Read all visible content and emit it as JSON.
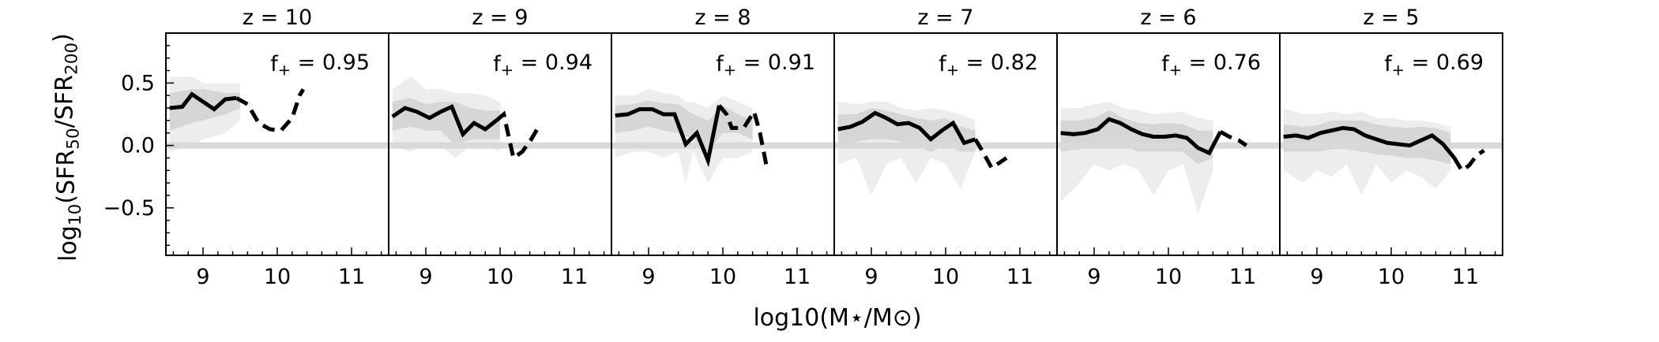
{
  "figure": {
    "xlabel": "log10(M⋆/M⊙)",
    "ylabel": "log10(SFR50/SFR200)"
  },
  "chart_data": [
    {
      "type": "line",
      "title": "z = 10",
      "annotation": "f+ = 0.95",
      "xlim": [
        8.5,
        11.5
      ],
      "ylim": [
        -0.88,
        0.9
      ],
      "xticks": [
        9,
        10,
        11
      ],
      "yticks": [
        -0.5,
        0.0,
        0.5
      ],
      "solid": [
        [
          8.55,
          0.3
        ],
        [
          8.72,
          0.31
        ],
        [
          8.85,
          0.41
        ],
        [
          9.0,
          0.35
        ],
        [
          9.15,
          0.29
        ],
        [
          9.3,
          0.37
        ],
        [
          9.45,
          0.38
        ]
      ],
      "dashed": [
        [
          9.45,
          0.38
        ],
        [
          9.6,
          0.33
        ],
        [
          9.75,
          0.18
        ],
        [
          9.9,
          0.13
        ],
        [
          10.05,
          0.12
        ],
        [
          10.2,
          0.22
        ],
        [
          10.3,
          0.4
        ],
        [
          10.35,
          0.45
        ]
      ],
      "band_outer": {
        "x": [
          8.55,
          8.85,
          9.0,
          9.3,
          9.5
        ],
        "lo": [
          -0.05,
          0.0,
          0.05,
          0.1,
          0.2
        ],
        "hi": [
          0.55,
          0.55,
          0.5,
          0.5,
          0.5
        ]
      },
      "band_inner": {
        "x": [
          8.55,
          8.85,
          9.0,
          9.3,
          9.5
        ],
        "lo": [
          0.12,
          0.18,
          0.2,
          0.25,
          0.3
        ],
        "hi": [
          0.42,
          0.45,
          0.45,
          0.42,
          0.42
        ]
      }
    },
    {
      "type": "line",
      "title": "z = 9",
      "annotation": "f+ = 0.94",
      "xlim": [
        8.5,
        11.5
      ],
      "ylim": [
        -0.88,
        0.9
      ],
      "xticks": [
        9,
        10,
        11
      ],
      "yticks": [
        -0.5,
        0.0,
        0.5
      ],
      "solid": [
        [
          8.55,
          0.23
        ],
        [
          8.72,
          0.3
        ],
        [
          8.88,
          0.27
        ],
        [
          9.05,
          0.22
        ],
        [
          9.2,
          0.27
        ],
        [
          9.35,
          0.31
        ],
        [
          9.5,
          0.09
        ],
        [
          9.65,
          0.18
        ],
        [
          9.8,
          0.13
        ],
        [
          9.95,
          0.2
        ]
      ],
      "dashed": [
        [
          9.95,
          0.2
        ],
        [
          10.05,
          0.25
        ],
        [
          10.18,
          -0.1
        ],
        [
          10.3,
          -0.05
        ],
        [
          10.42,
          0.05
        ],
        [
          10.5,
          0.13
        ]
      ],
      "band_outer": {
        "x": [
          8.55,
          8.8,
          9.0,
          9.2,
          9.4,
          9.6,
          9.8,
          10.0
        ],
        "lo": [
          0.0,
          -0.05,
          0.0,
          0.0,
          -0.1,
          0.0,
          0.0,
          -0.05
        ],
        "hi": [
          0.45,
          0.55,
          0.45,
          0.45,
          0.42,
          0.42,
          0.4,
          0.35
        ]
      },
      "band_inner": {
        "x": [
          8.55,
          8.8,
          9.0,
          9.2,
          9.4,
          9.6,
          9.8,
          10.0
        ],
        "lo": [
          0.12,
          0.15,
          0.12,
          0.12,
          0.0,
          0.05,
          0.05,
          0.05
        ],
        "hi": [
          0.35,
          0.38,
          0.33,
          0.35,
          0.35,
          0.3,
          0.28,
          0.28
        ]
      }
    },
    {
      "type": "line",
      "title": "z = 8",
      "annotation": "f+ = 0.91",
      "xlim": [
        8.5,
        11.5
      ],
      "ylim": [
        -0.88,
        0.9
      ],
      "xticks": [
        9,
        10,
        11
      ],
      "yticks": [
        -0.5,
        0.0,
        0.5
      ],
      "solid": [
        [
          8.55,
          0.24
        ],
        [
          8.72,
          0.25
        ],
        [
          8.88,
          0.29
        ],
        [
          9.05,
          0.29
        ],
        [
          9.2,
          0.25
        ],
        [
          9.35,
          0.25
        ],
        [
          9.5,
          0.01
        ],
        [
          9.65,
          0.1
        ],
        [
          9.8,
          -0.12
        ],
        [
          9.95,
          0.32
        ]
      ],
      "dashed": [
        [
          9.95,
          0.32
        ],
        [
          10.05,
          0.25
        ],
        [
          10.12,
          0.14
        ],
        [
          10.28,
          0.14
        ],
        [
          10.42,
          0.27
        ],
        [
          10.5,
          0.1
        ],
        [
          10.6,
          -0.2
        ]
      ],
      "band_outer": {
        "x": [
          8.55,
          8.8,
          9.0,
          9.2,
          9.4,
          9.5,
          9.6,
          9.8,
          10.0,
          10.2,
          10.4
        ],
        "lo": [
          -0.1,
          -0.05,
          -0.05,
          -0.1,
          -0.05,
          -0.3,
          -0.05,
          -0.3,
          -0.1,
          -0.1,
          -0.05
        ],
        "hi": [
          0.4,
          0.4,
          0.45,
          0.42,
          0.4,
          0.35,
          0.35,
          0.3,
          0.4,
          0.35,
          0.3
        ]
      },
      "band_inner": {
        "x": [
          8.55,
          8.8,
          9.0,
          9.2,
          9.4,
          9.6,
          9.8,
          10.0,
          10.2,
          10.4
        ],
        "lo": [
          0.1,
          0.12,
          0.15,
          0.12,
          0.1,
          0.05,
          -0.05,
          0.1,
          0.1,
          0.05
        ],
        "hi": [
          0.32,
          0.33,
          0.36,
          0.34,
          0.33,
          0.25,
          0.2,
          0.32,
          0.25,
          0.2
        ]
      }
    },
    {
      "type": "line",
      "title": "z = 7",
      "annotation": "f+ = 0.82",
      "xlim": [
        8.5,
        11.5
      ],
      "ylim": [
        -0.88,
        0.9
      ],
      "xticks": [
        9,
        10,
        11
      ],
      "yticks": [
        -0.5,
        0.0,
        0.5
      ],
      "solid": [
        [
          8.55,
          0.13
        ],
        [
          8.72,
          0.15
        ],
        [
          8.88,
          0.19
        ],
        [
          9.05,
          0.26
        ],
        [
          9.2,
          0.22
        ],
        [
          9.35,
          0.17
        ],
        [
          9.5,
          0.18
        ],
        [
          9.65,
          0.14
        ],
        [
          9.8,
          0.05
        ],
        [
          9.95,
          0.12
        ],
        [
          10.1,
          0.18
        ],
        [
          10.25,
          0.02
        ],
        [
          10.4,
          0.05
        ]
      ],
      "dashed": [
        [
          10.4,
          0.05
        ],
        [
          10.5,
          -0.05
        ],
        [
          10.62,
          -0.18
        ],
        [
          10.72,
          -0.14
        ],
        [
          10.82,
          -0.1
        ]
      ],
      "band_outer": {
        "x": [
          8.55,
          8.8,
          9.0,
          9.2,
          9.4,
          9.6,
          9.8,
          10.0,
          10.2,
          10.4
        ],
        "lo": [
          -0.15,
          -0.1,
          -0.4,
          -0.15,
          -0.1,
          -0.3,
          -0.1,
          -0.15,
          -0.35,
          -0.05
        ],
        "hi": [
          0.35,
          0.33,
          0.35,
          0.35,
          0.3,
          0.28,
          0.3,
          0.28,
          0.25,
          0.2
        ]
      },
      "band_inner": {
        "x": [
          8.55,
          8.8,
          9.0,
          9.2,
          9.4,
          9.6,
          9.8,
          10.0,
          10.2,
          10.4
        ],
        "lo": [
          0.0,
          0.03,
          0.05,
          0.05,
          0.03,
          0.0,
          -0.05,
          0.0,
          -0.05,
          -0.05
        ],
        "hi": [
          0.25,
          0.25,
          0.3,
          0.28,
          0.25,
          0.22,
          0.2,
          0.22,
          0.15,
          0.12
        ]
      }
    },
    {
      "type": "line",
      "title": "z = 6",
      "annotation": "f+ = 0.76",
      "xlim": [
        8.5,
        11.5
      ],
      "ylim": [
        -0.88,
        0.9
      ],
      "xticks": [
        9,
        10,
        11
      ],
      "yticks": [
        -0.5,
        0.0,
        0.5
      ],
      "solid": [
        [
          8.55,
          0.1
        ],
        [
          8.72,
          0.09
        ],
        [
          8.88,
          0.1
        ],
        [
          9.05,
          0.13
        ],
        [
          9.2,
          0.21
        ],
        [
          9.35,
          0.18
        ],
        [
          9.5,
          0.13
        ],
        [
          9.65,
          0.09
        ],
        [
          9.8,
          0.07
        ],
        [
          9.95,
          0.07
        ],
        [
          10.1,
          0.08
        ],
        [
          10.25,
          0.06
        ],
        [
          10.4,
          -0.02
        ],
        [
          10.55,
          -0.06
        ],
        [
          10.7,
          0.11
        ]
      ],
      "dashed": [
        [
          10.7,
          0.11
        ],
        [
          10.82,
          0.07
        ],
        [
          10.95,
          0.04
        ],
        [
          11.05,
          0.0
        ]
      ],
      "band_outer": {
        "x": [
          8.55,
          8.8,
          9.0,
          9.2,
          9.4,
          9.6,
          9.8,
          10.0,
          10.2,
          10.4,
          10.6
        ],
        "lo": [
          -0.45,
          -0.3,
          -0.15,
          -0.2,
          -0.15,
          -0.2,
          -0.4,
          -0.2,
          -0.15,
          -0.55,
          -0.2
        ],
        "hi": [
          0.3,
          0.3,
          0.33,
          0.35,
          0.3,
          0.28,
          0.25,
          0.26,
          0.27,
          0.22,
          0.2
        ]
      },
      "band_inner": {
        "x": [
          8.55,
          8.8,
          9.0,
          9.2,
          9.4,
          9.6,
          9.8,
          10.0,
          10.2,
          10.4,
          10.6
        ],
        "lo": [
          -0.05,
          -0.03,
          0.0,
          0.0,
          0.0,
          -0.05,
          -0.05,
          -0.05,
          -0.05,
          -0.15,
          -0.1
        ],
        "hi": [
          0.2,
          0.2,
          0.22,
          0.28,
          0.22,
          0.18,
          0.17,
          0.18,
          0.17,
          0.12,
          0.12
        ]
      }
    },
    {
      "type": "line",
      "title": "z = 5",
      "annotation": "f+ = 0.69",
      "xlim": [
        8.5,
        11.5
      ],
      "ylim": [
        -0.88,
        0.9
      ],
      "xticks": [
        9,
        10,
        11
      ],
      "yticks": [
        -0.5,
        0.0,
        0.5
      ],
      "solid": [
        [
          8.55,
          0.07
        ],
        [
          8.72,
          0.08
        ],
        [
          8.88,
          0.06
        ],
        [
          9.05,
          0.1
        ],
        [
          9.2,
          0.12
        ],
        [
          9.35,
          0.14
        ],
        [
          9.5,
          0.13
        ],
        [
          9.65,
          0.08
        ],
        [
          9.8,
          0.05
        ],
        [
          9.95,
          0.02
        ],
        [
          10.1,
          0.01
        ],
        [
          10.25,
          0.0
        ],
        [
          10.4,
          0.04
        ],
        [
          10.55,
          0.08
        ],
        [
          10.7,
          0.01
        ],
        [
          10.85,
          -0.1
        ]
      ],
      "dashed": [
        [
          10.85,
          -0.1
        ],
        [
          10.95,
          -0.2
        ],
        [
          11.05,
          -0.16
        ],
        [
          11.15,
          -0.08
        ],
        [
          11.25,
          -0.04
        ]
      ],
      "band_outer": {
        "x": [
          8.55,
          8.8,
          9.0,
          9.2,
          9.4,
          9.6,
          9.8,
          10.0,
          10.2,
          10.4,
          10.6,
          10.8
        ],
        "lo": [
          -0.2,
          -0.3,
          -0.2,
          -0.25,
          -0.15,
          -0.4,
          -0.15,
          -0.3,
          -0.2,
          -0.25,
          -0.35,
          -0.2
        ],
        "hi": [
          0.3,
          0.25,
          0.25,
          0.27,
          0.25,
          0.27,
          0.22,
          0.22,
          0.2,
          0.2,
          0.18,
          0.15
        ]
      },
      "band_inner": {
        "x": [
          8.55,
          8.8,
          9.0,
          9.2,
          9.4,
          9.6,
          9.8,
          10.0,
          10.2,
          10.4,
          10.6,
          10.8
        ],
        "lo": [
          -0.05,
          -0.05,
          -0.05,
          -0.03,
          -0.03,
          -0.05,
          -0.07,
          -0.08,
          -0.1,
          -0.1,
          -0.12,
          -0.15
        ],
        "hi": [
          0.17,
          0.15,
          0.16,
          0.2,
          0.2,
          0.2,
          0.17,
          0.15,
          0.14,
          0.15,
          0.14,
          0.1
        ]
      }
    }
  ]
}
